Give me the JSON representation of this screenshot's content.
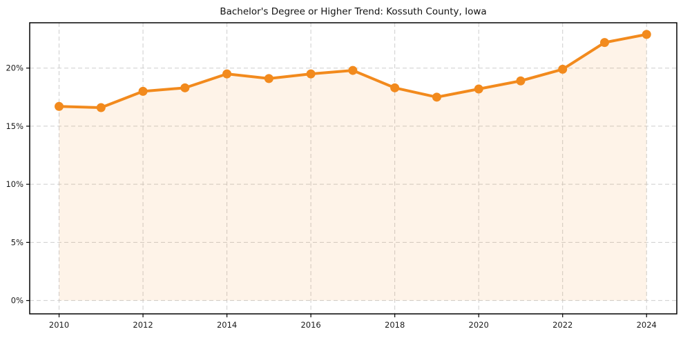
{
  "chart_data": {
    "type": "line",
    "title": "Bachelor's Degree or Higher Trend: Kossuth County, Iowa",
    "x": [
      2010,
      2011,
      2012,
      2013,
      2014,
      2015,
      2016,
      2017,
      2018,
      2019,
      2020,
      2021,
      2022,
      2023,
      2024
    ],
    "values": [
      16.7,
      16.6,
      18.0,
      18.3,
      19.5,
      19.1,
      19.5,
      19.8,
      18.3,
      17.5,
      18.2,
      18.9,
      19.9,
      22.2,
      22.9
    ],
    "xlabel": "",
    "ylabel": "",
    "xlim": [
      2009.3,
      2024.72
    ],
    "ylim": [
      -1.15,
      23.9
    ],
    "x_ticks": [
      2010,
      2012,
      2014,
      2016,
      2018,
      2020,
      2022,
      2024
    ],
    "x_tick_labels": [
      "2010",
      "2012",
      "2014",
      "2016",
      "2018",
      "2020",
      "2022",
      "2024"
    ],
    "y_ticks": [
      0,
      5,
      10,
      15,
      20
    ],
    "y_tick_labels": [
      "0%",
      "5%",
      "10%",
      "15%",
      "20%"
    ],
    "grid": true,
    "legend": false,
    "area_fill_baseline": 0,
    "colors": {
      "line": "#f28a1d",
      "fill": "#f28a1d",
      "grid": "#cdcdcd",
      "axis": "#000000",
      "text": "#1a1a1a",
      "background": "#ffffff"
    },
    "fill_opacity": 0.1,
    "line_width": 4,
    "marker_radius": 6.5
  }
}
